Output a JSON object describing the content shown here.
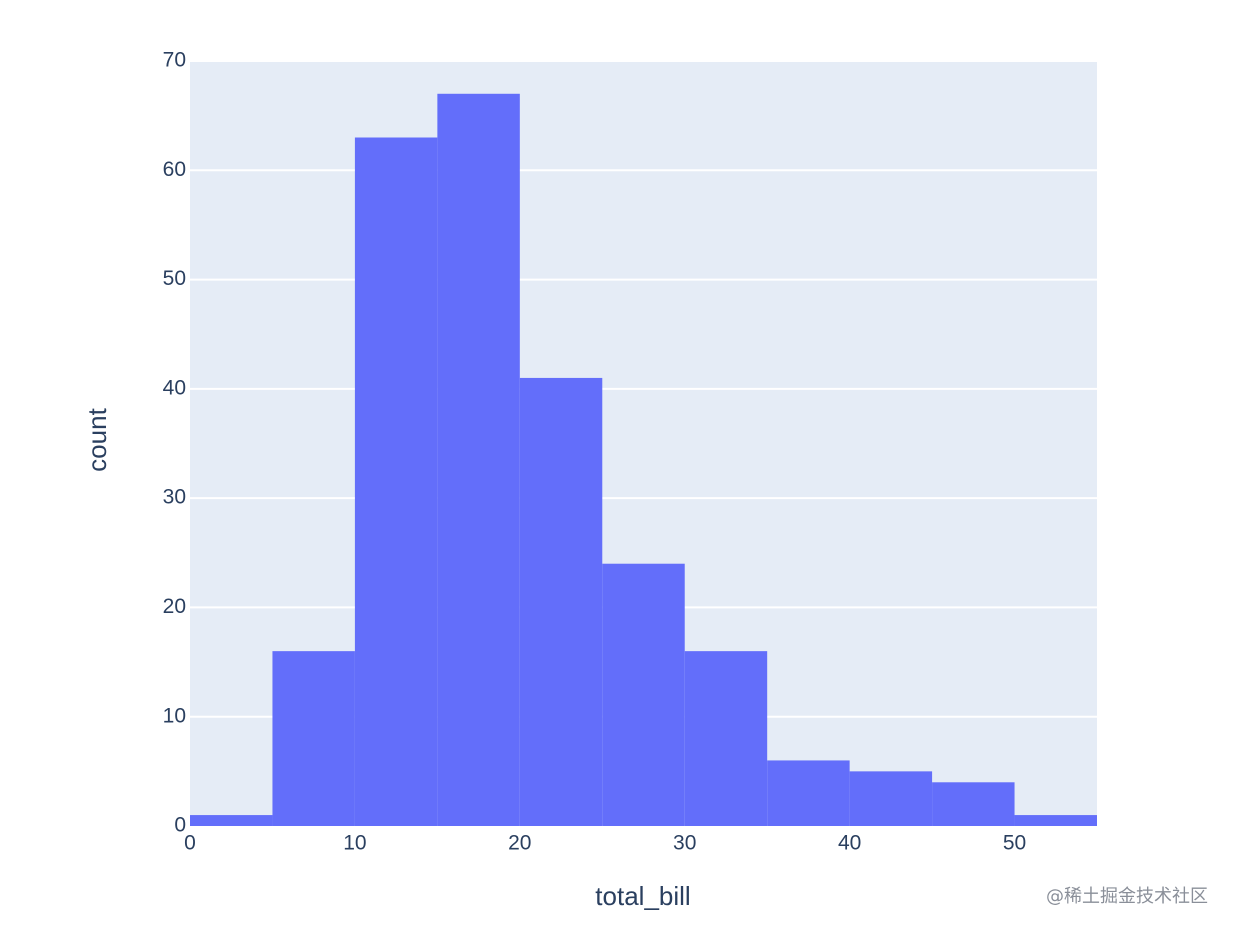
{
  "chart_data": {
    "type": "histogram",
    "x_label": "total_bill",
    "y_label": "count",
    "bins": [
      0,
      5,
      10,
      15,
      20,
      25,
      30,
      35,
      40,
      45,
      50,
      55
    ],
    "values": [
      1,
      16,
      63,
      67,
      41,
      24,
      16,
      6,
      5,
      4,
      1
    ],
    "color": "#636efa",
    "xlim": [
      0,
      55
    ],
    "xticks": [
      0,
      10,
      20,
      30,
      40,
      50
    ],
    "ylim": [
      0,
      70
    ],
    "yticks": [
      0,
      10,
      20,
      30,
      40,
      50,
      60,
      70
    ],
    "grid": true
  },
  "watermark": "@稀土掘金技术社区"
}
